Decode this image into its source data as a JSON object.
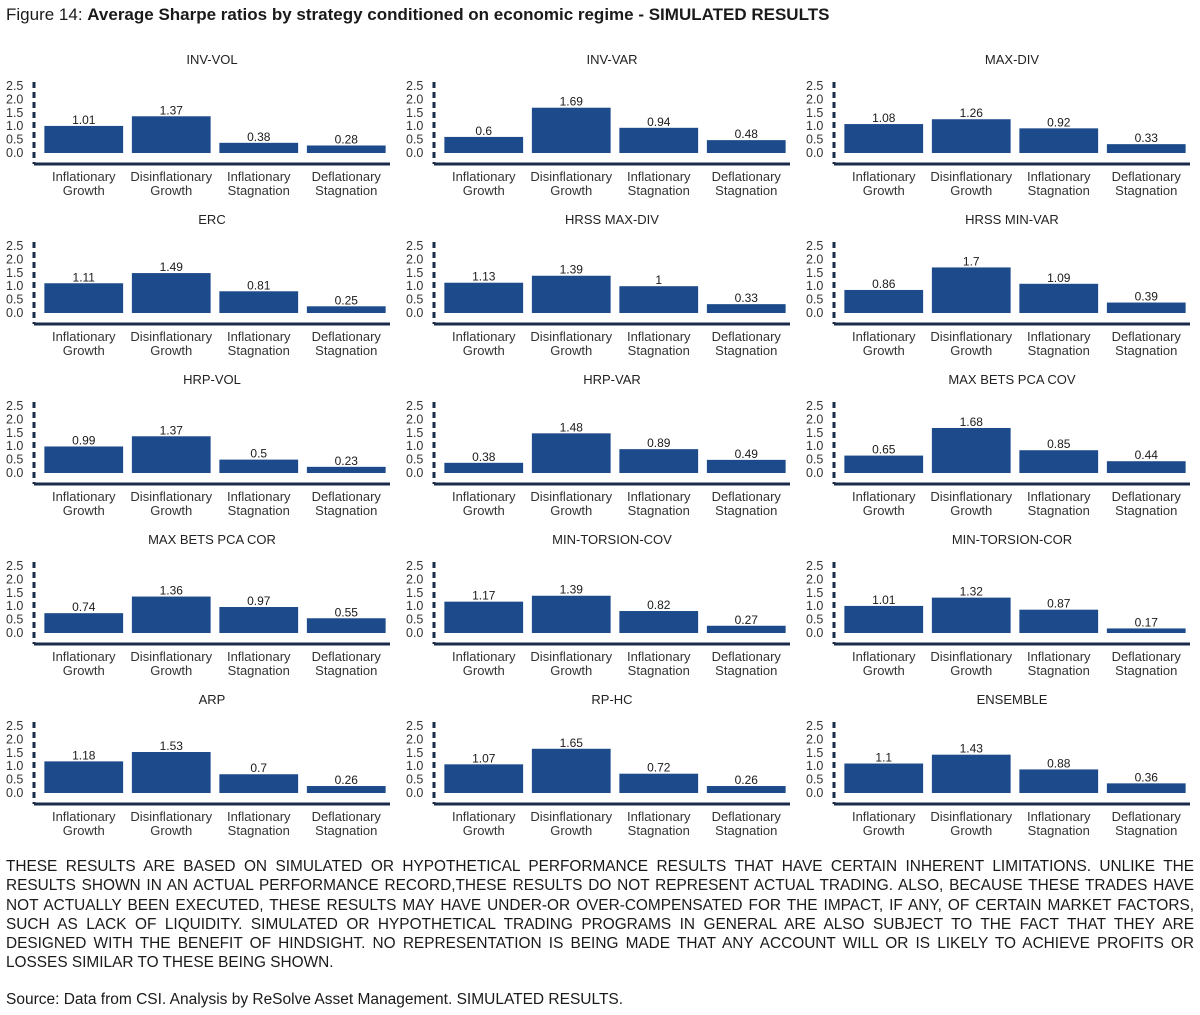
{
  "figure": {
    "label": "Figure 14: ",
    "title": "Average Sharpe ratios by strategy conditioned on economic regime - SIMULATED RESULTS"
  },
  "colors": {
    "bar": "#1c4a8a",
    "axis": "#1b2d4a",
    "text": "#333333"
  },
  "chart_data": [
    {
      "type": "bar",
      "title": "INV-VOL",
      "categories": [
        "Inflationary Growth",
        "Disinflationary Growth",
        "Inflationary Stagnation",
        "Deflationary Stagnation"
      ],
      "values": [
        1.01,
        1.37,
        0.38,
        0.28
      ],
      "value_labels": [
        "1.01",
        "1.37",
        "0.38",
        "0.28"
      ],
      "yticks": [
        "0.0",
        "0.5",
        "1.0",
        "1.5",
        "2.0",
        "2.5"
      ],
      "ylim": [
        0,
        2.5
      ]
    },
    {
      "type": "bar",
      "title": "INV-VAR",
      "categories": [
        "Inflationary Growth",
        "Disinflationary Growth",
        "Inflationary Stagnation",
        "Deflationary Stagnation"
      ],
      "values": [
        0.6,
        1.69,
        0.94,
        0.48
      ],
      "value_labels": [
        "0.6",
        "1.69",
        "0.94",
        "0.48"
      ],
      "yticks": [
        "0.0",
        "0.5",
        "1.0",
        "1.5",
        "2.0",
        "2.5"
      ],
      "ylim": [
        0,
        2.5
      ]
    },
    {
      "type": "bar",
      "title": "MAX-DIV",
      "categories": [
        "Inflationary Growth",
        "Disinflationary Growth",
        "Inflationary Stagnation",
        "Deflationary Stagnation"
      ],
      "values": [
        1.08,
        1.26,
        0.92,
        0.33
      ],
      "value_labels": [
        "1.08",
        "1.26",
        "0.92",
        "0.33"
      ],
      "yticks": [
        "0.0",
        "0.5",
        "1.0",
        "1.5",
        "2.0",
        "2.5"
      ],
      "ylim": [
        0,
        2.5
      ]
    },
    {
      "type": "bar",
      "title": "ERC",
      "categories": [
        "Inflationary Growth",
        "Disinflationary Growth",
        "Inflationary Stagnation",
        "Deflationary Stagnation"
      ],
      "values": [
        1.11,
        1.49,
        0.81,
        0.25
      ],
      "value_labels": [
        "1.11",
        "1.49",
        "0.81",
        "0.25"
      ],
      "yticks": [
        "0.0",
        "0.5",
        "1.0",
        "1.5",
        "2.0",
        "2.5"
      ],
      "ylim": [
        0,
        2.5
      ]
    },
    {
      "type": "bar",
      "title": "HRSS MAX-DIV",
      "categories": [
        "Inflationary Growth",
        "Disinflationary Growth",
        "Inflationary Stagnation",
        "Deflationary Stagnation"
      ],
      "values": [
        1.13,
        1.39,
        1,
        0.33
      ],
      "value_labels": [
        "1.13",
        "1.39",
        "1",
        "0.33"
      ],
      "yticks": [
        "0.0",
        "0.5",
        "1.0",
        "1.5",
        "2.0",
        "2.5"
      ],
      "ylim": [
        0,
        2.5
      ]
    },
    {
      "type": "bar",
      "title": "HRSS MIN-VAR",
      "categories": [
        "Inflationary Growth",
        "Disinflationary Growth",
        "Inflationary Stagnation",
        "Deflationary Stagnation"
      ],
      "values": [
        0.86,
        1.7,
        1.09,
        0.39
      ],
      "value_labels": [
        "0.86",
        "1.7",
        "1.09",
        "0.39"
      ],
      "yticks": [
        "0.0",
        "0.5",
        "1.0",
        "1.5",
        "2.0",
        "2.5"
      ],
      "ylim": [
        0,
        2.5
      ]
    },
    {
      "type": "bar",
      "title": "HRP-VOL",
      "categories": [
        "Inflationary Growth",
        "Disinflationary Growth",
        "Inflationary Stagnation",
        "Deflationary Stagnation"
      ],
      "values": [
        0.99,
        1.37,
        0.5,
        0.23
      ],
      "value_labels": [
        "0.99",
        "1.37",
        "0.5",
        "0.23"
      ],
      "yticks": [
        "0.0",
        "0.5",
        "1.0",
        "1.5",
        "2.0",
        "2.5"
      ],
      "ylim": [
        0,
        2.5
      ]
    },
    {
      "type": "bar",
      "title": "HRP-VAR",
      "categories": [
        "Inflationary Growth",
        "Disinflationary Growth",
        "Inflationary Stagnation",
        "Deflationary Stagnation"
      ],
      "values": [
        0.38,
        1.48,
        0.89,
        0.49
      ],
      "value_labels": [
        "0.38",
        "1.48",
        "0.89",
        "0.49"
      ],
      "yticks": [
        "0.0",
        "0.5",
        "1.0",
        "1.5",
        "2.0",
        "2.5"
      ],
      "ylim": [
        0,
        2.5
      ]
    },
    {
      "type": "bar",
      "title": "MAX BETS PCA COV",
      "categories": [
        "Inflationary Growth",
        "Disinflationary Growth",
        "Inflationary Stagnation",
        "Deflationary Stagnation"
      ],
      "values": [
        0.65,
        1.68,
        0.85,
        0.44
      ],
      "value_labels": [
        "0.65",
        "1.68",
        "0.85",
        "0.44"
      ],
      "yticks": [
        "0.0",
        "0.5",
        "1.0",
        "1.5",
        "2.0",
        "2.5"
      ],
      "ylim": [
        0,
        2.5
      ]
    },
    {
      "type": "bar",
      "title": "MAX BETS PCA COR",
      "categories": [
        "Inflationary Growth",
        "Disinflationary Growth",
        "Inflationary Stagnation",
        "Deflationary Stagnation"
      ],
      "values": [
        0.74,
        1.36,
        0.97,
        0.55
      ],
      "value_labels": [
        "0.74",
        "1.36",
        "0.97",
        "0.55"
      ],
      "yticks": [
        "0.0",
        "0.5",
        "1.0",
        "1.5",
        "2.0",
        "2.5"
      ],
      "ylim": [
        0,
        2.5
      ]
    },
    {
      "type": "bar",
      "title": "MIN-TORSION-COV",
      "categories": [
        "Inflationary Growth",
        "Disinflationary Growth",
        "Inflationary Stagnation",
        "Deflationary Stagnation"
      ],
      "values": [
        1.17,
        1.39,
        0.82,
        0.27
      ],
      "value_labels": [
        "1.17",
        "1.39",
        "0.82",
        "0.27"
      ],
      "yticks": [
        "0.0",
        "0.5",
        "1.0",
        "1.5",
        "2.0",
        "2.5"
      ],
      "ylim": [
        0,
        2.5
      ]
    },
    {
      "type": "bar",
      "title": "MIN-TORSION-COR",
      "categories": [
        "Inflationary Growth",
        "Disinflationary Growth",
        "Inflationary Stagnation",
        "Deflationary Stagnation"
      ],
      "values": [
        1.01,
        1.32,
        0.87,
        0.17
      ],
      "value_labels": [
        "1.01",
        "1.32",
        "0.87",
        "0.17"
      ],
      "yticks": [
        "0.0",
        "0.5",
        "1.0",
        "1.5",
        "2.0",
        "2.5"
      ],
      "ylim": [
        0,
        2.5
      ]
    },
    {
      "type": "bar",
      "title": "ARP",
      "categories": [
        "Inflationary Growth",
        "Disinflationary Growth",
        "Inflationary Stagnation",
        "Deflationary Stagnation"
      ],
      "values": [
        1.18,
        1.53,
        0.7,
        0.26
      ],
      "value_labels": [
        "1.18",
        "1.53",
        "0.7",
        "0.26"
      ],
      "yticks": [
        "0.0",
        "0.5",
        "1.0",
        "1.5",
        "2.0",
        "2.5"
      ],
      "ylim": [
        0,
        2.5
      ]
    },
    {
      "type": "bar",
      "title": "RP-HC",
      "categories": [
        "Inflationary Growth",
        "Disinflationary Growth",
        "Inflationary Stagnation",
        "Deflationary Stagnation"
      ],
      "values": [
        1.07,
        1.65,
        0.72,
        0.26
      ],
      "value_labels": [
        "1.07",
        "1.65",
        "0.72",
        "0.26"
      ],
      "yticks": [
        "0.0",
        "0.5",
        "1.0",
        "1.5",
        "2.0",
        "2.5"
      ],
      "ylim": [
        0,
        2.5
      ]
    },
    {
      "type": "bar",
      "title": "ENSEMBLE",
      "categories": [
        "Inflationary Growth",
        "Disinflationary Growth",
        "Inflationary Stagnation",
        "Deflationary Stagnation"
      ],
      "values": [
        1.1,
        1.43,
        0.88,
        0.36
      ],
      "value_labels": [
        "1.1",
        "1.43",
        "0.88",
        "0.36"
      ],
      "yticks": [
        "0.0",
        "0.5",
        "1.0",
        "1.5",
        "2.0",
        "2.5"
      ],
      "ylim": [
        0,
        2.5
      ]
    }
  ],
  "disclaimer": "THESE RESULTS ARE BASED ON SIMULATED OR HYPOTHETICAL PERFORMANCE RESULTS THAT HAVE CERTAIN INHERENT LIMITATIONS. UNLIKE THE RESULTS SHOWN IN AN ACTUAL PERFORMANCE RECORD,THESE RESULTS DO NOT REPRESENT ACTUAL TRADING. ALSO, BECAUSE THESE TRADES HAVE NOT ACTUALLY BEEN EXECUTED, THESE RESULTS MAY HAVE UNDER-OR OVER-COMPENSATED FOR THE IMPACT, IF ANY, OF CERTAIN MARKET FACTORS, SUCH AS LACK OF LIQUIDITY. SIMULATED OR HYPOTHETICAL TRADING PROGRAMS IN GENERAL ARE ALSO SUBJECT TO THE FACT THAT THEY ARE DESIGNED WITH THE BENEFIT OF HINDSIGHT. NO REPRESENTATION IS BEING MADE THAT ANY ACCOUNT WILL OR IS LIKELY TO ACHIEVE PROFITS OR LOSSES SIMILAR TO THESE BEING SHOWN.",
  "source": "Source: Data from CSI. Analysis by ReSolve Asset Management. SIMULATED RESULTS."
}
